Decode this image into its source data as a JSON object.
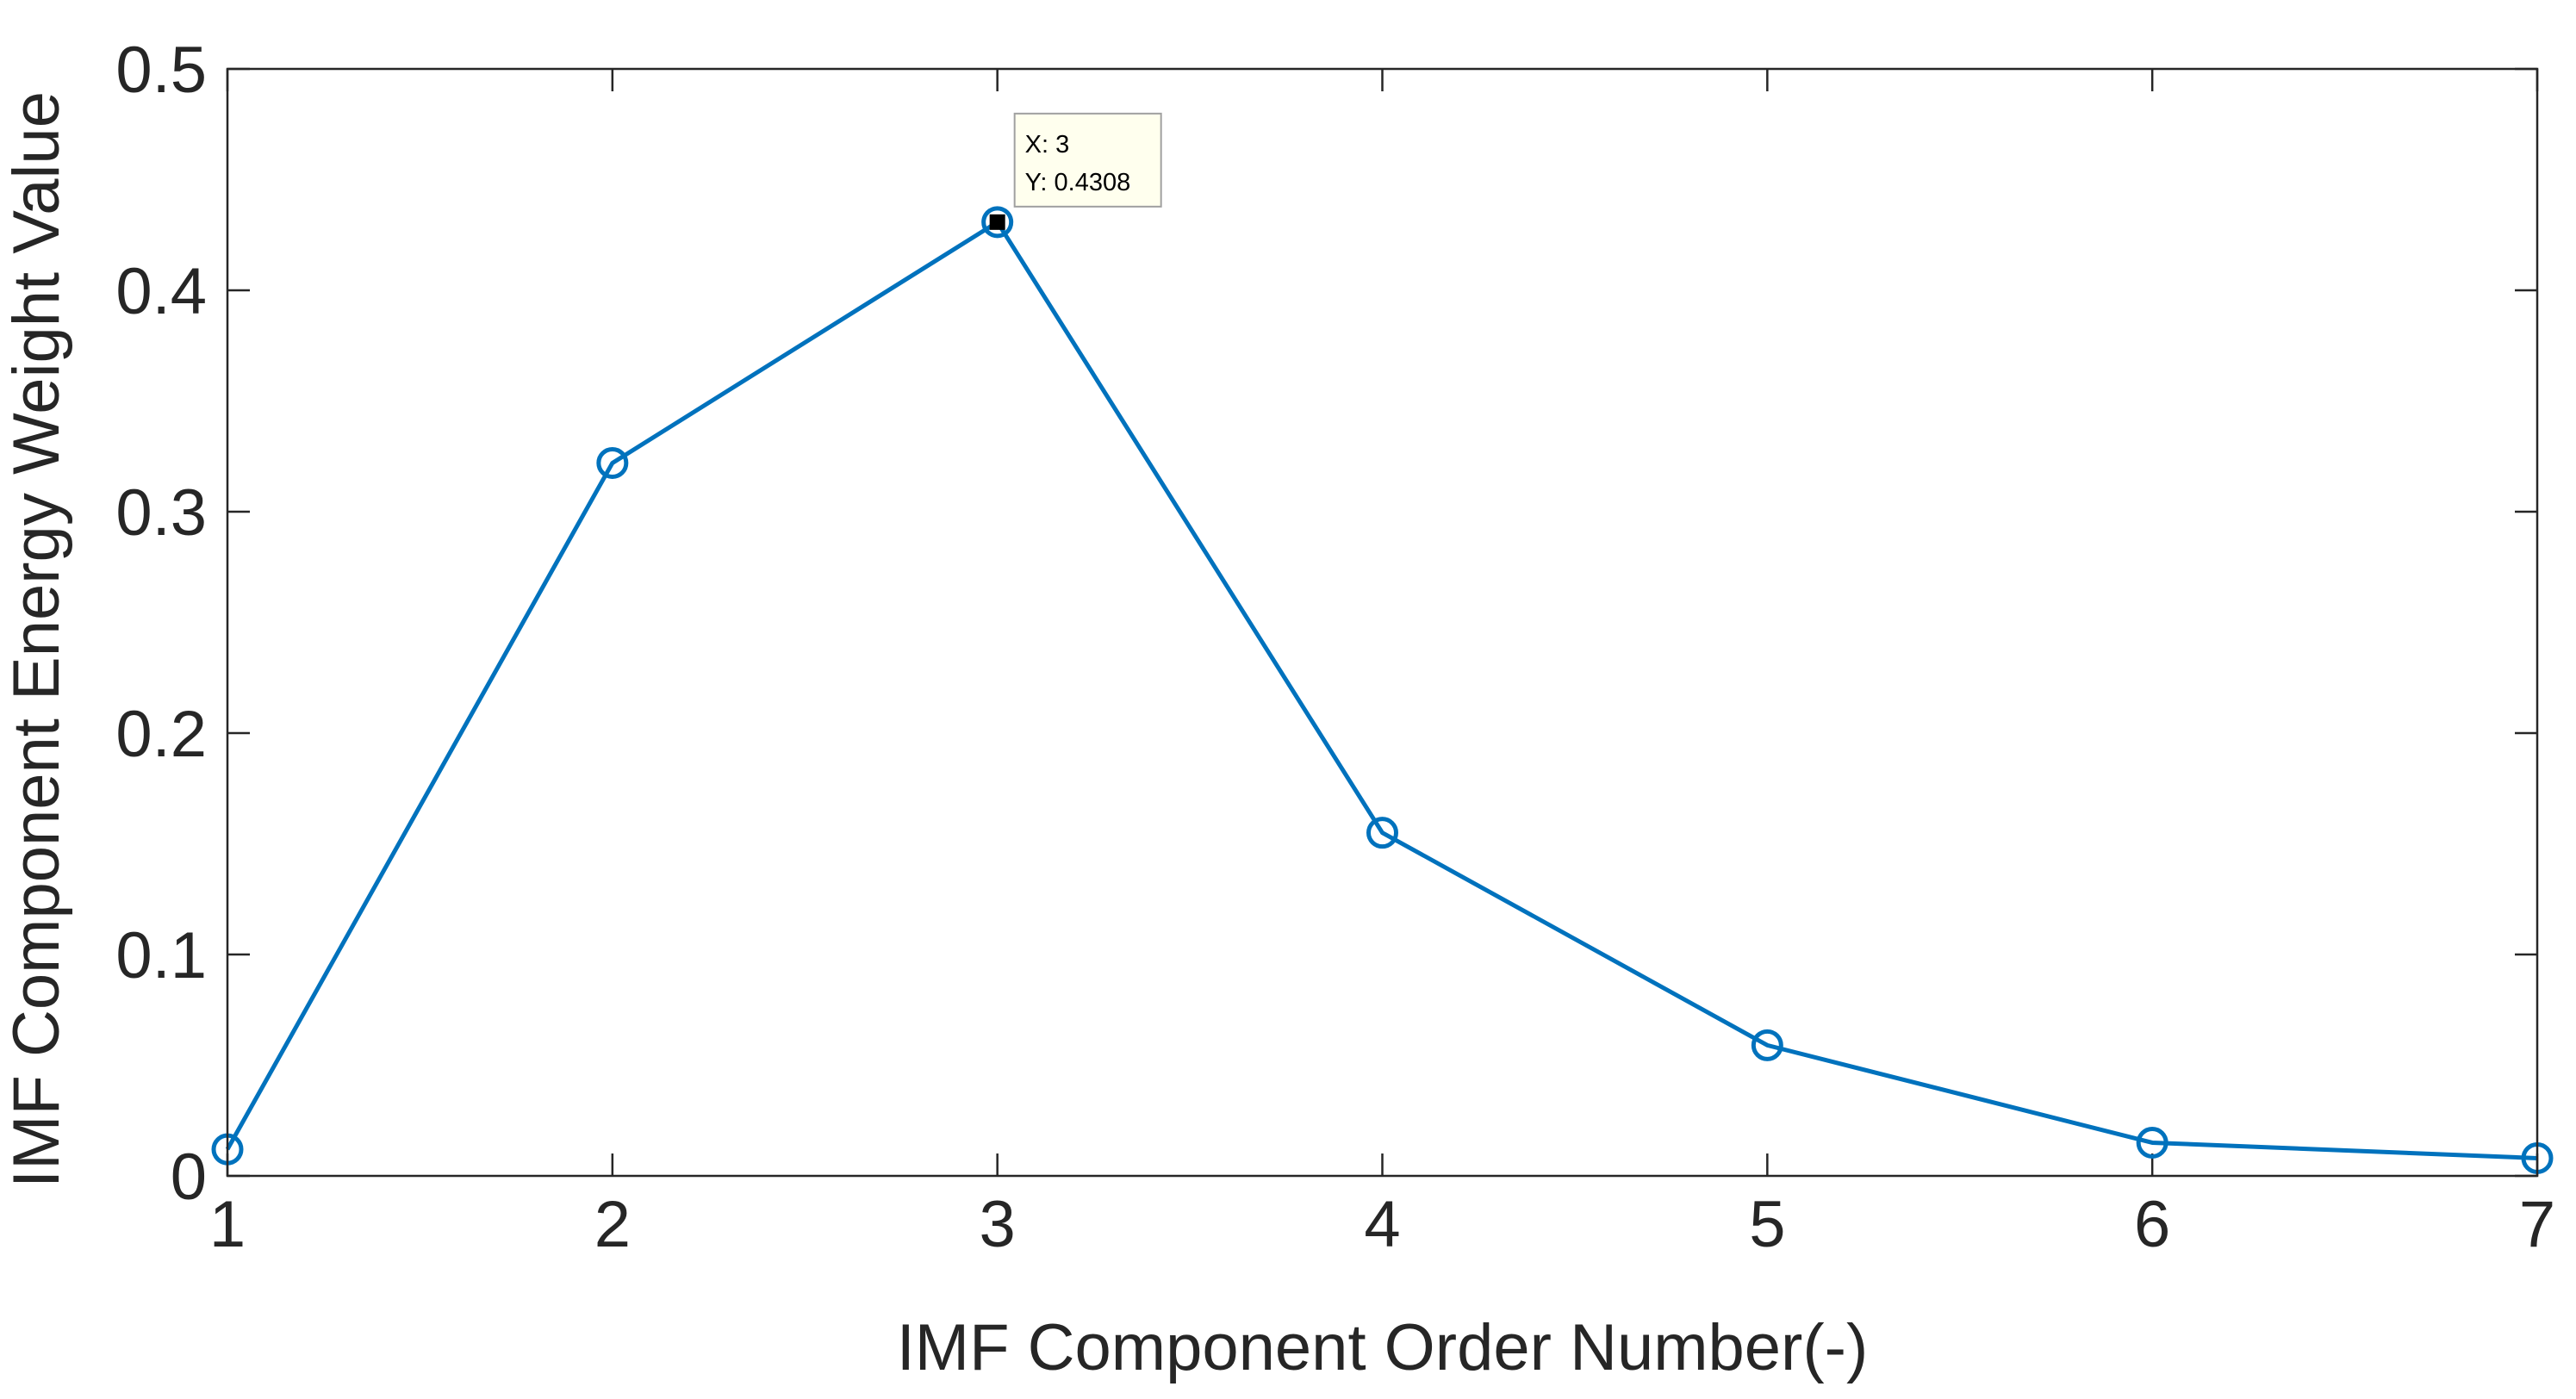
{
  "chart_data": {
    "type": "line",
    "title": "",
    "xlabel": "IMF Component Order Number(-)",
    "ylabel": "IMF Component Energy Weight Value",
    "xlim": [
      1,
      7
    ],
    "ylim": [
      0,
      0.5
    ],
    "xticks": [
      1,
      2,
      3,
      4,
      5,
      6,
      7
    ],
    "xtick_labels": [
      "1",
      "2",
      "3",
      "4",
      "5",
      "6",
      "7"
    ],
    "yticks": [
      0,
      0.1,
      0.2,
      0.3,
      0.4,
      0.5
    ],
    "ytick_labels": [
      "0",
      "0.1",
      "0.2",
      "0.3",
      "0.4",
      "0.5"
    ],
    "grid": false,
    "box": true,
    "marker": "circle",
    "color": "#0072bd",
    "series": [
      {
        "x": [
          1,
          2,
          3,
          4,
          5,
          6,
          7
        ],
        "y": [
          0.012,
          0.322,
          0.4308,
          0.155,
          0.059,
          0.015,
          0.008
        ]
      }
    ],
    "datatip": {
      "x": 3,
      "y": 0.4308,
      "line1": "X: 3",
      "line2": "Y: 0.4308",
      "background": "#ffffee"
    }
  }
}
